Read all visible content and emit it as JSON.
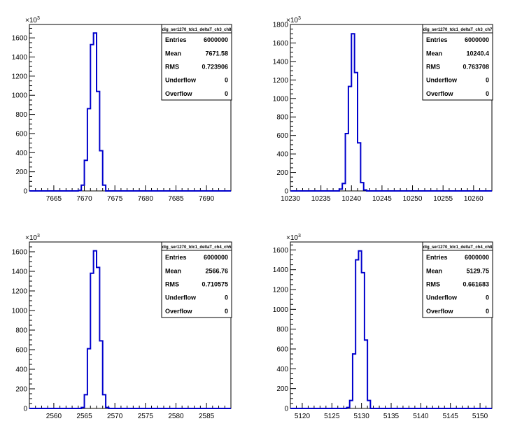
{
  "chart_data": [
    {
      "type": "histogram",
      "stats_title": "dig_ser1270_tdc1_deltaT_ch3_ch8",
      "stats": [
        {
          "label": "Entries",
          "value": "6000000"
        },
        {
          "label": "Mean",
          "value": "7671.58"
        },
        {
          "label": "RMS",
          "value": "0.723906"
        },
        {
          "label": "Underflow",
          "value": "0"
        },
        {
          "label": "Overflow",
          "value": "0"
        }
      ],
      "y_multiplier_label": "×10",
      "y_multiplier_exp": "3",
      "xlim": [
        7661,
        7694
      ],
      "ylim": [
        0,
        1740
      ],
      "xticks": [
        7665,
        7670,
        7675,
        7680,
        7685,
        7690
      ],
      "yticks": [
        0,
        200,
        400,
        600,
        800,
        1000,
        1200,
        1400,
        1600
      ],
      "bin_width": 0.5,
      "bins_x": [
        7669.0,
        7669.5,
        7670.0,
        7670.5,
        7671.0,
        7671.5,
        7672.0,
        7672.5,
        7673.0
      ],
      "bins_y": [
        5,
        60,
        320,
        860,
        1530,
        1650,
        1040,
        420,
        60
      ],
      "line_color": "#0000cc"
    },
    {
      "type": "histogram",
      "stats_title": "dig_ser1270_tdc1_deltaT_ch3_ch7",
      "stats": [
        {
          "label": "Entries",
          "value": "6000000"
        },
        {
          "label": "Mean",
          "value": "10240.4"
        },
        {
          "label": "RMS",
          "value": "0.763708"
        },
        {
          "label": "Underflow",
          "value": "0"
        },
        {
          "label": "Overflow",
          "value": "0"
        }
      ],
      "y_multiplier_label": "×10",
      "y_multiplier_exp": "3",
      "xlim": [
        10230,
        10263
      ],
      "ylim": [
        0,
        1800
      ],
      "xticks": [
        10230,
        10235,
        10240,
        10245,
        10250,
        10255,
        10260
      ],
      "yticks": [
        0,
        200,
        400,
        600,
        800,
        1000,
        1200,
        1400,
        1600,
        1800
      ],
      "bin_width": 0.5,
      "bins_x": [
        10238.0,
        10238.5,
        10239.0,
        10239.5,
        10240.0,
        10240.5,
        10241.0,
        10241.5,
        10242.0
      ],
      "bins_y": [
        20,
        80,
        620,
        1130,
        1700,
        1280,
        520,
        90,
        10
      ],
      "line_color": "#0000cc"
    },
    {
      "type": "histogram",
      "stats_title": "dig_ser1270_tdc1_deltaT_ch4_ch5",
      "stats": [
        {
          "label": "Entries",
          "value": "6000000"
        },
        {
          "label": "Mean",
          "value": "2566.76"
        },
        {
          "label": "RMS",
          "value": "0.710575"
        },
        {
          "label": "Underflow",
          "value": "0"
        },
        {
          "label": "Overflow",
          "value": "0"
        }
      ],
      "y_multiplier_label": "×10",
      "y_multiplier_exp": "3",
      "xlim": [
        2556,
        2589
      ],
      "ylim": [
        0,
        1700
      ],
      "xticks": [
        2560,
        2565,
        2570,
        2575,
        2580,
        2585
      ],
      "yticks": [
        0,
        200,
        400,
        600,
        800,
        1000,
        1200,
        1400,
        1600
      ],
      "bin_width": 0.5,
      "bins_x": [
        2564.5,
        2565.0,
        2565.5,
        2566.0,
        2566.5,
        2567.0,
        2567.5,
        2568.0,
        2568.5
      ],
      "bins_y": [
        10,
        140,
        610,
        1380,
        1610,
        1440,
        690,
        140,
        10
      ],
      "line_color": "#0000cc"
    },
    {
      "type": "histogram",
      "stats_title": "dig_ser1270_tdc1_deltaT_ch4_ch8",
      "stats": [
        {
          "label": "Entries",
          "value": "6000000"
        },
        {
          "label": "Mean",
          "value": "5129.75"
        },
        {
          "label": "RMS",
          "value": "0.661683"
        },
        {
          "label": "Underflow",
          "value": "0"
        },
        {
          "label": "Overflow",
          "value": "0"
        }
      ],
      "y_multiplier_label": "×10",
      "y_multiplier_exp": "3",
      "xlim": [
        5118,
        5152
      ],
      "ylim": [
        0,
        1680
      ],
      "xticks": [
        5120,
        5125,
        5130,
        5135,
        5140,
        5145,
        5150
      ],
      "yticks": [
        0,
        200,
        400,
        600,
        800,
        1000,
        1200,
        1400,
        1600
      ],
      "bin_width": 0.5,
      "bins_x": [
        5127.5,
        5128.0,
        5128.5,
        5129.0,
        5129.5,
        5130.0,
        5130.5,
        5131.0
      ],
      "bins_y": [
        10,
        80,
        550,
        1500,
        1590,
        1370,
        690,
        80
      ],
      "line_color": "#0000cc"
    }
  ]
}
